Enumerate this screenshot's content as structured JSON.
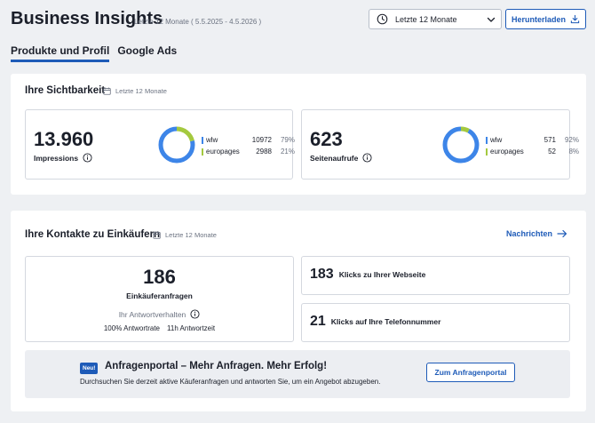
{
  "header": {
    "title": "Business Insights",
    "period_range": "Letzte 12 Monate ( 5.5.2025 - 4.5.2026 )",
    "period_select": {
      "value": "Letzte 12 Monate",
      "icon": "clock-icon"
    },
    "download_label": "Herunterladen"
  },
  "tabs": [
    {
      "label": "Produkte und Profil",
      "active": true
    },
    {
      "label": "Google Ads",
      "active": false
    }
  ],
  "visibility": {
    "title": "Ihre Sichtbarkeit",
    "period": "Letzte 12 Monate",
    "impressions": {
      "value": "13.960",
      "label": "Impressions",
      "legend": [
        {
          "name": "wlw",
          "value": "10972",
          "pct": "79%",
          "color": "#3d85e8",
          "share": 0.79
        },
        {
          "name": "europages",
          "value": "2988",
          "pct": "21%",
          "color": "#a4c93f",
          "share": 0.21
        }
      ]
    },
    "pageviews": {
      "value": "623",
      "label": "Seitenaufrufe",
      "legend": [
        {
          "name": "wlw",
          "value": "571",
          "pct": "92%",
          "color": "#3d85e8",
          "share": 0.92
        },
        {
          "name": "europages",
          "value": "52",
          "pct": "8%",
          "color": "#a4c93f",
          "share": 0.08
        }
      ]
    }
  },
  "contacts": {
    "title": "Ihre Kontakte zu Einkäufern",
    "period": "Letzte 12 Monate",
    "messages_link": "Nachrichten",
    "inquiries": {
      "value": "186",
      "label": "Einkäuferanfragen",
      "response_label": "Ihr Antwortverhalten",
      "response_rate": "100% Antwortrate",
      "response_time": "11h Antwortzeit"
    },
    "website_clicks": {
      "value": "183",
      "label": "Klicks zu Ihrer Webseite"
    },
    "phone_clicks": {
      "value": "21",
      "label": "Klicks auf Ihre Telefonnummer"
    }
  },
  "promo": {
    "badge": "Neu!",
    "title": "Anfragenportal – Mehr Anfragen. Mehr Erfolg!",
    "description": "Durchsuchen Sie derzeit aktive Käuferanfragen und antworten Sie, um ein Angebot abzugeben.",
    "button": "Zum Anfragenportal"
  },
  "colors": {
    "accent": "#1e5bb8",
    "wlw": "#3d85e8",
    "europages": "#a4c93f"
  }
}
